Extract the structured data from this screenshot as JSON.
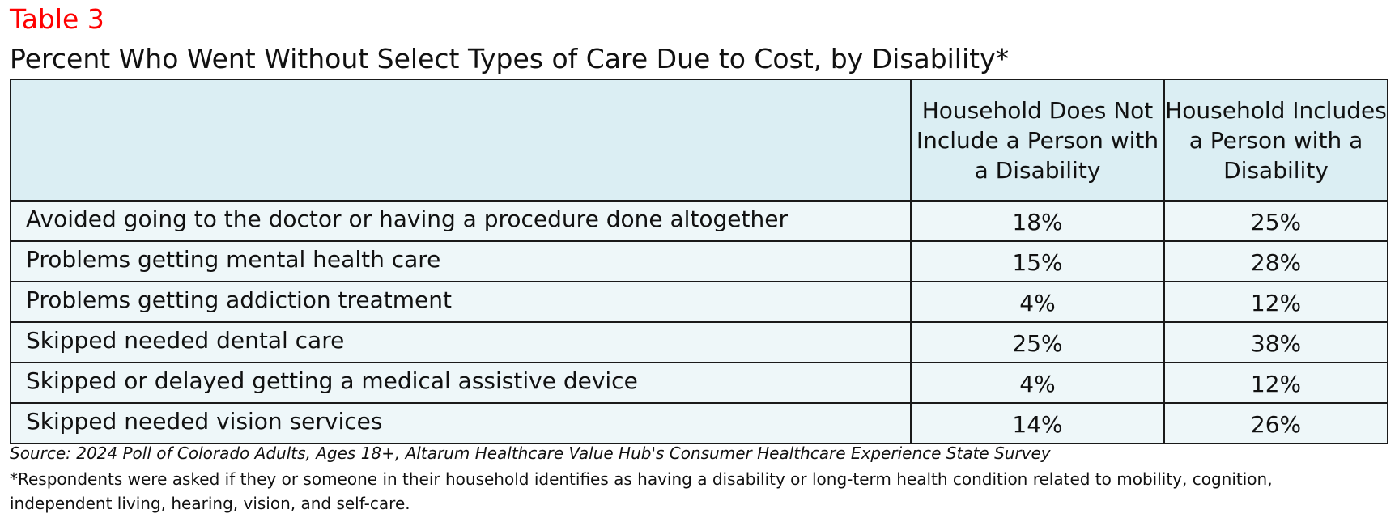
{
  "table_label": "Table 3",
  "title": "Percent Who Went Without Select Types of Care Due to Cost, by Disability*",
  "columns": [
    "",
    "Household Does Not Include a Person with a Disability",
    "Household Includes a Person with a Disability"
  ],
  "rows": [
    {
      "item": "Avoided going to the doctor or having a procedure done altogether",
      "no_disability": "18%",
      "disability": "25%"
    },
    {
      "item": "Problems getting mental health care",
      "no_disability": "15%",
      "disability": "28%"
    },
    {
      "item": "Problems getting addiction treatment",
      "no_disability": "4%",
      "disability": "12%"
    },
    {
      "item": "Skipped needed dental care",
      "no_disability": "25%",
      "disability": "38%"
    },
    {
      "item": "Skipped or delayed getting a medical assistive device",
      "no_disability": "4%",
      "disability": "12%"
    },
    {
      "item": "Skipped needed vision services",
      "no_disability": "14%",
      "disability": "26%"
    }
  ],
  "source": "Source: 2024 Poll of Colorado Adults, Ages 18+, Altarum Healthcare Value Hub's Consumer Healthcare Experience State Survey",
  "footnote": "*Respondents were asked if they or someone in their household identifies as having a disability or long-term health condition related to mobility, cognition, independent living, hearing, vision, and self-care.",
  "colors": {
    "label": "#ff0000",
    "header_bg": "#dbeef3",
    "row_bg": "#eef7f9",
    "border": "#1a1a1a"
  }
}
